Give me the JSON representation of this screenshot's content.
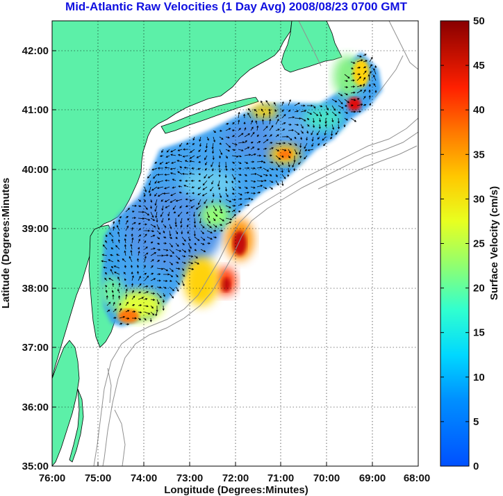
{
  "title": "Mid-Atlantic Raw Velocities (1 Day Avg) 2008/08/23 0700 GMT",
  "xlabel": "Longitude (Degrees:Minutes)",
  "ylabel": "Latitude (Degrees:Minutes",
  "colorbar": {
    "label": "Surface Velocity (cm/s)",
    "ticks": [
      "0",
      "5",
      "10",
      "15",
      "20",
      "25",
      "30",
      "35",
      "40",
      "45",
      "50"
    ],
    "min": 0,
    "max": 50
  },
  "x_ticks": [
    "76:00",
    "75:00",
    "74:00",
    "73:00",
    "72:00",
    "71:00",
    "70:00",
    "69:00",
    "68:00"
  ],
  "y_ticks": [
    "42:00",
    "41:00",
    "40:00",
    "39:00",
    "38:00",
    "37:00",
    "36:00",
    "35:00"
  ],
  "map_extent": {
    "lon": [
      -76,
      -68
    ],
    "lat": [
      35,
      42.5
    ]
  },
  "colors": {
    "land": "#5cf0a8",
    "ocean_background": "#ffffff",
    "bathymetry": "#909090",
    "title": "#1010e0"
  },
  "legend_colormap": "jet",
  "vector_color": "#000000"
}
